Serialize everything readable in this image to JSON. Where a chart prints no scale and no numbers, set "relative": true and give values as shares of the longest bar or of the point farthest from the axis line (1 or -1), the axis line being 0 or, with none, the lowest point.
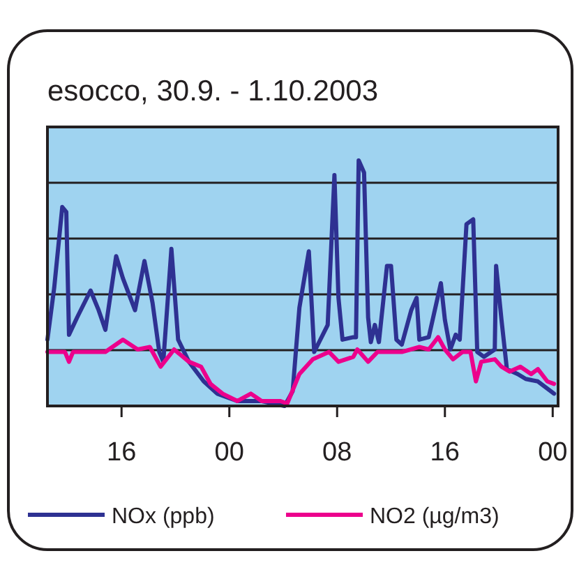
{
  "chart_data": {
    "type": "line",
    "title": "esocco, 30.9. - 1.10.2003",
    "relative": true,
    "xlim": [
      "2003-09-30T10:30",
      "2003-10-02T00:24"
    ],
    "xticks": [
      {
        "value": "2003-09-30T16:00",
        "label": "16"
      },
      {
        "value": "2003-10-01T00:00",
        "label": "00"
      },
      {
        "value": "2003-10-01T08:00",
        "label": "08"
      },
      {
        "value": "2003-10-01T16:00",
        "label": "16"
      },
      {
        "value": "2003-10-02T00:00",
        "label": "00"
      }
    ],
    "grid": "y",
    "legend": "bottom",
    "marker": "none",
    "line_style": "solid",
    "series": [
      {
        "name": "NOx (ppb)",
        "color": "#2e3192",
        "x": [
          "2003-09-30T10:30",
          "2003-09-30T11:00",
          "2003-09-30T11:36",
          "2003-09-30T11:54",
          "2003-09-30T12:06",
          "2003-09-30T12:42",
          "2003-09-30T13:42",
          "2003-09-30T14:18",
          "2003-09-30T14:48",
          "2003-09-30T15:36",
          "2003-09-30T16:06",
          "2003-09-30T17:00",
          "2003-09-30T17:42",
          "2003-09-30T18:18",
          "2003-09-30T18:48",
          "2003-09-30T19:06",
          "2003-09-30T19:42",
          "2003-09-30T20:12",
          "2003-09-30T21:00",
          "2003-09-30T22:06",
          "2003-09-30T23:06",
          "2003-10-01T00:36",
          "2003-10-01T01:36",
          "2003-10-01T02:24",
          "2003-10-01T04:06",
          "2003-10-01T04:42",
          "2003-10-01T05:12",
          "2003-10-01T05:54",
          "2003-10-01T06:18",
          "2003-10-01T07:18",
          "2003-10-01T07:48",
          "2003-10-01T08:06",
          "2003-10-01T08:24",
          "2003-10-01T09:12",
          "2003-10-01T09:24",
          "2003-10-01T09:36",
          "2003-10-01T10:00",
          "2003-10-01T10:18",
          "2003-10-01T10:30",
          "2003-10-01T10:48",
          "2003-10-01T11:06",
          "2003-10-01T11:42",
          "2003-10-01T12:00",
          "2003-10-01T12:24",
          "2003-10-01T12:48",
          "2003-10-01T13:30",
          "2003-10-01T13:54",
          "2003-10-01T14:06",
          "2003-10-01T14:48",
          "2003-10-01T15:42",
          "2003-10-01T16:00",
          "2003-10-01T16:24",
          "2003-10-01T16:48",
          "2003-10-01T17:06",
          "2003-10-01T17:36",
          "2003-10-01T18:06",
          "2003-10-01T18:24",
          "2003-10-01T18:54",
          "2003-10-01T19:42",
          "2003-10-01T19:48",
          "2003-10-01T20:12",
          "2003-10-01T20:36",
          "2003-10-01T21:24",
          "2003-10-01T22:00",
          "2003-10-01T22:54",
          "2003-10-02T00:06"
        ],
        "values": [
          0.27,
          0.48,
          0.81,
          0.79,
          0.29,
          0.36,
          0.47,
          0.39,
          0.31,
          0.61,
          0.52,
          0.39,
          0.59,
          0.42,
          0.22,
          0.18,
          0.64,
          0.27,
          0.18,
          0.1,
          0.05,
          0.02,
          0.02,
          0.02,
          0,
          0.06,
          0.4,
          0.63,
          0.22,
          0.33,
          0.94,
          0.44,
          0.27,
          0.28,
          0.28,
          1,
          0.95,
          0.36,
          0.26,
          0.33,
          0.26,
          0.57,
          0.57,
          0.27,
          0.25,
          0.39,
          0.44,
          0.27,
          0.28,
          0.5,
          0.35,
          0.23,
          0.29,
          0.27,
          0.74,
          0.76,
          0.22,
          0.2,
          0.23,
          0.57,
          0.35,
          0.15,
          0.13,
          0.11,
          0.1,
          0.05
        ]
      },
      {
        "name": "NO2 (µg/m3)",
        "color": "#ec008c",
        "x": [
          "2003-09-30T10:30",
          "2003-09-30T11:48",
          "2003-09-30T12:06",
          "2003-09-30T12:24",
          "2003-09-30T13:42",
          "2003-09-30T14:48",
          "2003-09-30T16:06",
          "2003-09-30T17:12",
          "2003-09-30T18:06",
          "2003-09-30T18:54",
          "2003-09-30T19:54",
          "2003-09-30T21:00",
          "2003-09-30T21:54",
          "2003-09-30T22:36",
          "2003-09-30T23:30",
          "2003-10-01T00:36",
          "2003-10-01T01:36",
          "2003-10-01T02:24",
          "2003-10-01T03:48",
          "2003-10-01T04:18",
          "2003-10-01T05:12",
          "2003-10-01T06:12",
          "2003-10-01T07:24",
          "2003-10-01T08:06",
          "2003-10-01T09:12",
          "2003-10-01T09:30",
          "2003-10-01T10:18",
          "2003-10-01T11:00",
          "2003-10-01T12:06",
          "2003-10-01T12:48",
          "2003-10-01T14:06",
          "2003-10-01T14:48",
          "2003-10-01T15:30",
          "2003-10-01T16:00",
          "2003-10-01T16:36",
          "2003-10-01T17:18",
          "2003-10-01T17:54",
          "2003-10-01T18:18",
          "2003-10-01T18:42",
          "2003-10-01T19:42",
          "2003-10-01T20:12",
          "2003-10-01T20:48",
          "2003-10-01T21:36",
          "2003-10-01T22:24",
          "2003-10-01T22:54",
          "2003-10-01T23:36",
          "2003-10-02T00:06"
        ],
        "values": [
          0.22,
          0.22,
          0.18,
          0.22,
          0.22,
          0.22,
          0.27,
          0.23,
          0.24,
          0.16,
          0.23,
          0.18,
          0.16,
          0.09,
          0.05,
          0.02,
          0.05,
          0.02,
          0.02,
          0.01,
          0.13,
          0.19,
          0.22,
          0.18,
          0.2,
          0.23,
          0.18,
          0.22,
          0.22,
          0.22,
          0.24,
          0.23,
          0.28,
          0.23,
          0.19,
          0.22,
          0.22,
          0.1,
          0.18,
          0.19,
          0.16,
          0.14,
          0.16,
          0.13,
          0.15,
          0.1,
          0.09
        ]
      }
    ]
  }
}
